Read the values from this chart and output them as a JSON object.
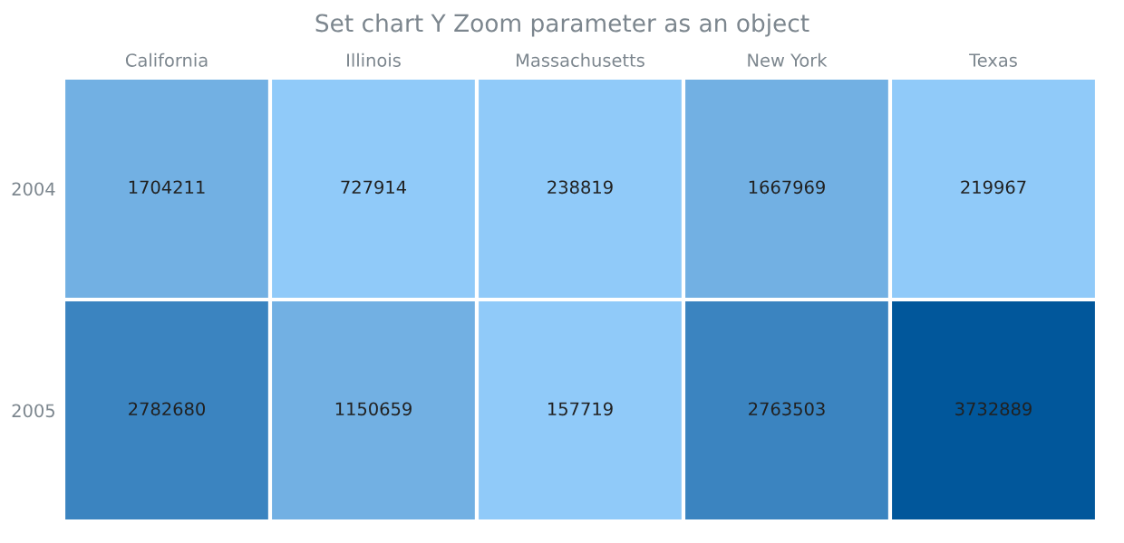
{
  "chart_data": {
    "type": "heatmap",
    "title": "Set chart Y Zoom parameter as an object",
    "categories": [
      "California",
      "Illinois",
      "Massachusetts",
      "New York",
      "Texas"
    ],
    "y_categories": [
      "2004",
      "2005"
    ],
    "cells": [
      [
        1704211,
        727914,
        238819,
        1667969,
        219967
      ],
      [
        2782680,
        1150659,
        157719,
        2763503,
        3732889
      ]
    ],
    "colors": [
      [
        "#72b0e3",
        "#90caf9",
        "#90caf9",
        "#72b0e3",
        "#90caf9"
      ],
      [
        "#3b84c0",
        "#72b0e3",
        "#90caf9",
        "#3b84c0",
        "#01579b"
      ]
    ],
    "data_labels": true
  }
}
